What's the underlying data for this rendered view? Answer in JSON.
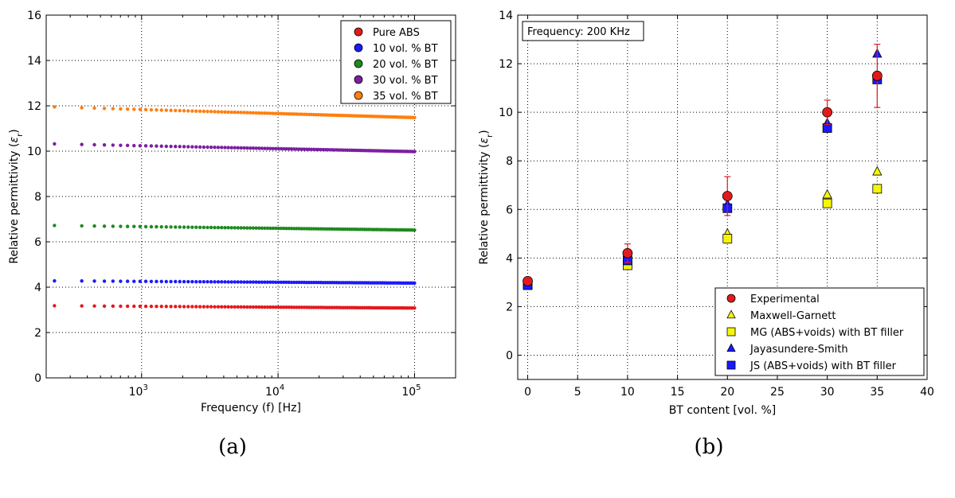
{
  "chart_data": [
    {
      "type": "scatter",
      "panel_label": "(a)",
      "xlabel": "Frequency (f) [Hz]",
      "ylabel": "Relative permittivity (εr)",
      "ylabel_main": "Relative permittivity (",
      "ylabel_sym": "ε",
      "ylabel_sub": "r",
      "ylabel_close": ")",
      "xscale": "log",
      "xlim": [
        200,
        200000
      ],
      "ylim": [
        0,
        16
      ],
      "grid": true,
      "legend_position": "top-right",
      "yticks": [
        0,
        2,
        4,
        6,
        8,
        10,
        12,
        14,
        16
      ],
      "xticks": [
        {
          "value": 1000,
          "base": "10",
          "exp": "3"
        },
        {
          "value": 10000,
          "base": "10",
          "exp": "4"
        },
        {
          "value": 100000,
          "base": "10",
          "exp": "5"
        }
      ],
      "x_range_data": [
        230,
        100000
      ],
      "series": [
        {
          "name": "Pure ABS",
          "color": "#e31a1c",
          "start_value": 3.18,
          "end_value": 3.08
        },
        {
          "name": "10 vol. % BT",
          "color": "#1a1aff",
          "start_value": 4.28,
          "end_value": 4.18
        },
        {
          "name": "20 vol. % BT",
          "color": "#1f8a1f",
          "start_value": 6.72,
          "end_value": 6.52
        },
        {
          "name": "30 vol. % BT",
          "color": "#7b1fa2",
          "start_value": 10.32,
          "end_value": 9.98
        },
        {
          "name": "35 vol. % BT",
          "color": "#ff7f0e",
          "start_value": 11.95,
          "end_value": 11.48
        }
      ]
    },
    {
      "type": "scatter",
      "panel_label": "(b)",
      "xlabel": "BT content [vol. %]",
      "ylabel": "Relative permittivity (εr)",
      "ylabel_main": "Relative permittivity (",
      "ylabel_sym": "ε",
      "ylabel_sub": "r",
      "ylabel_close": ")",
      "annotation": "Frequency: 200 KHz",
      "xlim": [
        -1,
        40
      ],
      "ylim": [
        -1,
        14
      ],
      "grid": true,
      "legend_position": "bottom-right",
      "xticks": [
        0,
        5,
        10,
        15,
        20,
        25,
        30,
        35,
        40
      ],
      "yticks": [
        0,
        2,
        4,
        6,
        8,
        10,
        12,
        14
      ],
      "series": [
        {
          "name": "Experimental",
          "marker": "circle",
          "color": "#e31a1c",
          "x": [
            0,
            10,
            20,
            30,
            35
          ],
          "y": [
            3.05,
            4.2,
            6.55,
            10.0,
            11.5
          ],
          "error": [
            0.1,
            0.38,
            0.8,
            0.5,
            1.3
          ]
        },
        {
          "name": "Maxwell-Garnett",
          "marker": "triangle",
          "color": "#f5f50a",
          "x": [
            0,
            10,
            20,
            30,
            35
          ],
          "y": [
            2.95,
            3.85,
            5.0,
            6.6,
            7.55
          ]
        },
        {
          "name": "MG (ABS+voids) with BT filler",
          "marker": "square",
          "color": "#f5f50a",
          "x": [
            0,
            10,
            20,
            30,
            35
          ],
          "y": [
            2.9,
            3.7,
            4.8,
            6.25,
            6.85
          ]
        },
        {
          "name": "Jayasundere-Smith",
          "marker": "triangle",
          "color": "#1a1aff",
          "x": [
            0,
            10,
            20,
            30,
            35
          ],
          "y": [
            2.95,
            4.0,
            6.2,
            9.55,
            12.4
          ]
        },
        {
          "name": "JS (ABS+voids) with BT filler",
          "marker": "square",
          "color": "#1a1aff",
          "x": [
            0,
            10,
            20,
            30,
            35
          ],
          "y": [
            2.88,
            3.9,
            6.05,
            9.35,
            11.35
          ]
        }
      ]
    }
  ]
}
